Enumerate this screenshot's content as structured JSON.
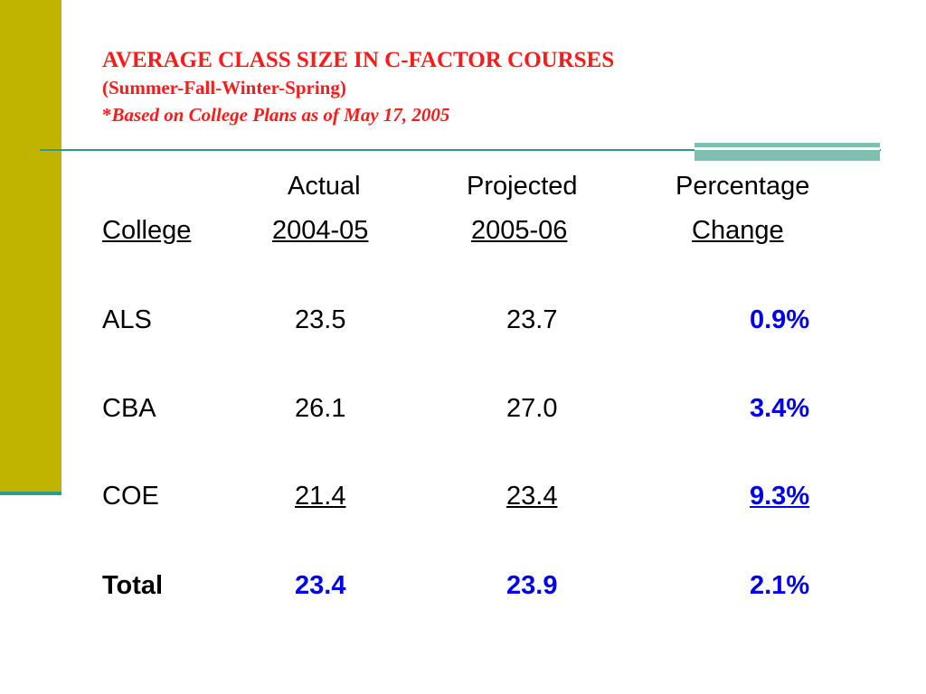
{
  "title": {
    "line1": "AVERAGE CLASS SIZE IN C-FACTOR COURSES",
    "line2": "(Summer-Fall-Winter-Spring)",
    "line3_star": "*",
    "line3_italic": "Based on College Plans as of May 17, 2005"
  },
  "table": {
    "header_row1": {
      "actual": "Actual",
      "projected": "Projected",
      "percentage": "Percentage"
    },
    "header_row2": {
      "college": "College",
      "actual": "2004-05",
      "projected": "2005-06",
      "change": "Change"
    },
    "rows": [
      {
        "college": "ALS",
        "actual": "23.5",
        "projected": "23.7",
        "change": "0.9%"
      },
      {
        "college": "CBA",
        "actual": "26.1",
        "projected": "27.0",
        "change": "3.4%"
      },
      {
        "college": "COE",
        "actual": "21.4",
        "projected": "23.4",
        "change": "9.3%"
      }
    ],
    "total": {
      "college": "Total",
      "actual": "23.4",
      "projected": "23.9",
      "change": "2.1%"
    }
  },
  "colors": {
    "title": "#ff1a1a",
    "accent_bar": "#c0b400",
    "rule": "#2a9d8f",
    "highlight": "#0000ee"
  }
}
